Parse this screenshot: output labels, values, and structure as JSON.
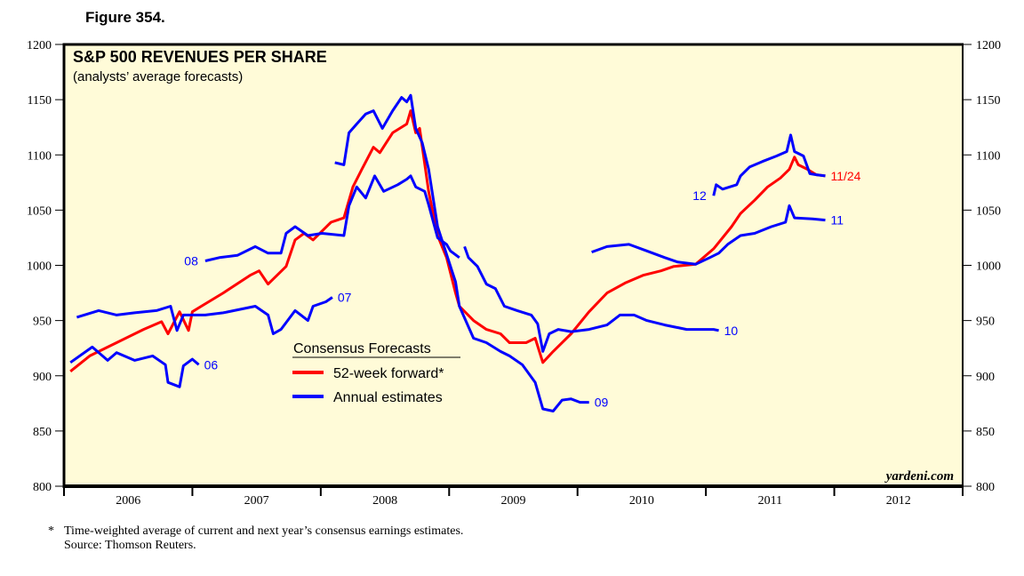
{
  "figure_label": "Figure 354.",
  "footnote_marker": "*",
  "footnote": "Time-weighted average of current and next year’s consensus earnings estimates.",
  "source": "Source: Thomson Reuters.",
  "watermark": "yardeni.com",
  "colors": {
    "forward": "#ff0000",
    "annual": "#0000ff",
    "background": "#fffbd8"
  },
  "chart_data": {
    "type": "line",
    "title": "S&P 500 REVENUES PER SHARE",
    "subtitle": "(analysts’ average forecasts)",
    "xlabel": "",
    "ylabel": "",
    "xlim": [
      2006,
      2013
    ],
    "ylim": [
      800,
      1200
    ],
    "yticks": [
      800,
      850,
      900,
      950,
      1000,
      1050,
      1100,
      1150,
      1200
    ],
    "xtick_labels": [
      "2006",
      "2007",
      "2008",
      "2009",
      "2010",
      "2011",
      "2012"
    ],
    "grid": false,
    "legend": {
      "title": "Consensus Forecasts",
      "placement": "center-left",
      "entries": [
        {
          "label": "52-week forward*",
          "color": "#ff0000"
        },
        {
          "label": "Annual estimates",
          "color": "#0000ff"
        }
      ]
    },
    "series": [
      {
        "name": "52-week forward",
        "label": "11/24",
        "color": "#ff0000",
        "points": [
          [
            2006.05,
            904
          ],
          [
            2006.2,
            918
          ],
          [
            2006.41,
            930
          ],
          [
            2006.62,
            942
          ],
          [
            2006.76,
            949
          ],
          [
            2006.81,
            938
          ],
          [
            2006.9,
            958
          ],
          [
            2006.97,
            941
          ],
          [
            2007.0,
            958
          ],
          [
            2007.07,
            963
          ],
          [
            2007.24,
            975
          ],
          [
            2007.45,
            991
          ],
          [
            2007.52,
            995
          ],
          [
            2007.59,
            983
          ],
          [
            2007.73,
            999
          ],
          [
            2007.8,
            1023
          ],
          [
            2007.87,
            1029
          ],
          [
            2007.94,
            1023
          ],
          [
            2008.08,
            1039
          ],
          [
            2008.18,
            1043
          ],
          [
            2008.25,
            1071
          ],
          [
            2008.32,
            1087
          ],
          [
            2008.41,
            1107
          ],
          [
            2008.46,
            1102
          ],
          [
            2008.56,
            1120
          ],
          [
            2008.67,
            1128
          ],
          [
            2008.7,
            1140
          ],
          [
            2008.74,
            1120
          ],
          [
            2008.77,
            1124
          ],
          [
            2008.84,
            1067
          ],
          [
            2008.91,
            1027
          ],
          [
            2008.98,
            1007
          ],
          [
            2009.05,
            975
          ],
          [
            2009.08,
            963
          ],
          [
            2009.19,
            950
          ],
          [
            2009.29,
            942
          ],
          [
            2009.4,
            938
          ],
          [
            2009.47,
            930
          ],
          [
            2009.6,
            930
          ],
          [
            2009.67,
            934
          ],
          [
            2009.73,
            912
          ],
          [
            2009.81,
            922
          ],
          [
            2009.95,
            938
          ],
          [
            2010.09,
            958
          ],
          [
            2010.23,
            975
          ],
          [
            2010.37,
            984
          ],
          [
            2010.51,
            991
          ],
          [
            2010.65,
            995
          ],
          [
            2010.75,
            999
          ],
          [
            2010.92,
            1001
          ],
          [
            2011.06,
            1015
          ],
          [
            2011.2,
            1035
          ],
          [
            2011.27,
            1047
          ],
          [
            2011.38,
            1059
          ],
          [
            2011.48,
            1071
          ],
          [
            2011.58,
            1079
          ],
          [
            2011.65,
            1087
          ],
          [
            2011.69,
            1098
          ],
          [
            2011.72,
            1091
          ],
          [
            2011.79,
            1087
          ],
          [
            2011.86,
            1082
          ],
          [
            2011.93,
            1081
          ]
        ]
      },
      {
        "name": "Annual estimate 2006",
        "label": "06",
        "color": "#0000ff",
        "points": [
          [
            2006.05,
            912
          ],
          [
            2006.22,
            926
          ],
          [
            2006.34,
            914
          ],
          [
            2006.41,
            921
          ],
          [
            2006.55,
            914
          ],
          [
            2006.69,
            918
          ],
          [
            2006.79,
            910
          ],
          [
            2006.81,
            894
          ],
          [
            2006.9,
            890
          ],
          [
            2006.93,
            909
          ],
          [
            2007.0,
            915
          ],
          [
            2007.05,
            910
          ]
        ]
      },
      {
        "name": "Annual estimate 2007",
        "label": "07",
        "color": "#0000ff",
        "points": [
          [
            2006.1,
            953
          ],
          [
            2006.27,
            959
          ],
          [
            2006.41,
            955
          ],
          [
            2006.55,
            957
          ],
          [
            2006.72,
            959
          ],
          [
            2006.83,
            963
          ],
          [
            2006.88,
            941
          ],
          [
            2006.93,
            955
          ],
          [
            2007.1,
            955
          ],
          [
            2007.24,
            957
          ],
          [
            2007.49,
            963
          ],
          [
            2007.59,
            955
          ],
          [
            2007.63,
            938
          ],
          [
            2007.69,
            942
          ],
          [
            2007.8,
            959
          ],
          [
            2007.9,
            950
          ],
          [
            2007.94,
            963
          ],
          [
            2008.04,
            967
          ],
          [
            2008.09,
            971
          ]
        ]
      },
      {
        "name": "Annual estimate 2008",
        "label": "08",
        "color": "#0000ff",
        "points": [
          [
            2007.1,
            1004
          ],
          [
            2007.21,
            1007
          ],
          [
            2007.35,
            1009
          ],
          [
            2007.49,
            1017
          ],
          [
            2007.59,
            1011
          ],
          [
            2007.69,
            1011
          ],
          [
            2007.73,
            1029
          ],
          [
            2007.8,
            1035
          ],
          [
            2007.9,
            1027
          ],
          [
            2008.01,
            1029
          ],
          [
            2008.18,
            1027
          ],
          [
            2008.22,
            1054
          ],
          [
            2008.28,
            1071
          ],
          [
            2008.35,
            1061
          ],
          [
            2008.42,
            1081
          ],
          [
            2008.49,
            1067
          ],
          [
            2008.6,
            1073
          ],
          [
            2008.67,
            1078
          ],
          [
            2008.7,
            1081
          ],
          [
            2008.74,
            1071
          ],
          [
            2008.81,
            1067
          ],
          [
            2008.84,
            1055
          ],
          [
            2008.91,
            1025
          ],
          [
            2008.98,
            1019
          ],
          [
            2009.01,
            1013
          ],
          [
            2009.08,
            1007
          ]
        ]
      },
      {
        "name": "Annual estimate 2009",
        "label": "09",
        "color": "#0000ff",
        "points": [
          [
            2008.11,
            1093
          ],
          [
            2008.18,
            1091
          ],
          [
            2008.22,
            1120
          ],
          [
            2008.28,
            1128
          ],
          [
            2008.35,
            1137
          ],
          [
            2008.41,
            1140
          ],
          [
            2008.48,
            1124
          ],
          [
            2008.56,
            1140
          ],
          [
            2008.63,
            1152
          ],
          [
            2008.67,
            1148
          ],
          [
            2008.7,
            1154
          ],
          [
            2008.74,
            1124
          ],
          [
            2008.79,
            1111
          ],
          [
            2008.84,
            1087
          ],
          [
            2008.91,
            1035
          ],
          [
            2008.98,
            1010
          ],
          [
            2009.05,
            985
          ],
          [
            2009.08,
            963
          ],
          [
            2009.19,
            934
          ],
          [
            2009.29,
            930
          ],
          [
            2009.4,
            922
          ],
          [
            2009.47,
            918
          ],
          [
            2009.57,
            910
          ],
          [
            2009.67,
            894
          ],
          [
            2009.73,
            870
          ],
          [
            2009.81,
            868
          ],
          [
            2009.88,
            878
          ],
          [
            2009.95,
            879
          ],
          [
            2010.02,
            876
          ],
          [
            2010.09,
            876
          ]
        ]
      },
      {
        "name": "Annual estimate 2010",
        "label": "10",
        "color": "#0000ff",
        "points": [
          [
            2009.12,
            1017
          ],
          [
            2009.15,
            1007
          ],
          [
            2009.22,
            999
          ],
          [
            2009.29,
            983
          ],
          [
            2009.36,
            979
          ],
          [
            2009.43,
            963
          ],
          [
            2009.53,
            959
          ],
          [
            2009.64,
            955
          ],
          [
            2009.69,
            947
          ],
          [
            2009.73,
            922
          ],
          [
            2009.78,
            938
          ],
          [
            2009.85,
            942
          ],
          [
            2009.95,
            940
          ],
          [
            2010.09,
            942
          ],
          [
            2010.23,
            946
          ],
          [
            2010.33,
            955
          ],
          [
            2010.44,
            955
          ],
          [
            2010.54,
            950
          ],
          [
            2010.68,
            946
          ],
          [
            2010.85,
            942
          ],
          [
            2011.06,
            942
          ],
          [
            2011.1,
            941
          ]
        ]
      },
      {
        "name": "Annual estimate 2011",
        "label": "11",
        "color": "#0000ff",
        "points": [
          [
            2010.11,
            1012
          ],
          [
            2010.23,
            1017
          ],
          [
            2010.4,
            1019
          ],
          [
            2010.54,
            1013
          ],
          [
            2010.68,
            1007
          ],
          [
            2010.78,
            1003
          ],
          [
            2010.92,
            1001
          ],
          [
            2011.03,
            1007
          ],
          [
            2011.1,
            1011
          ],
          [
            2011.17,
            1019
          ],
          [
            2011.27,
            1027
          ],
          [
            2011.38,
            1029
          ],
          [
            2011.51,
            1035
          ],
          [
            2011.62,
            1039
          ],
          [
            2011.65,
            1054
          ],
          [
            2011.69,
            1043
          ],
          [
            2011.83,
            1042
          ],
          [
            2011.93,
            1041
          ]
        ]
      },
      {
        "name": "Annual estimate 2012",
        "label": "12",
        "color": "#0000ff",
        "points": [
          [
            2011.06,
            1063
          ],
          [
            2011.08,
            1073
          ],
          [
            2011.13,
            1069
          ],
          [
            2011.24,
            1073
          ],
          [
            2011.27,
            1081
          ],
          [
            2011.34,
            1089
          ],
          [
            2011.44,
            1094
          ],
          [
            2011.55,
            1099
          ],
          [
            2011.63,
            1103
          ],
          [
            2011.66,
            1118
          ],
          [
            2011.69,
            1103
          ],
          [
            2011.76,
            1099
          ],
          [
            2011.81,
            1083
          ],
          [
            2011.86,
            1082
          ],
          [
            2011.93,
            1081
          ]
        ]
      }
    ]
  }
}
